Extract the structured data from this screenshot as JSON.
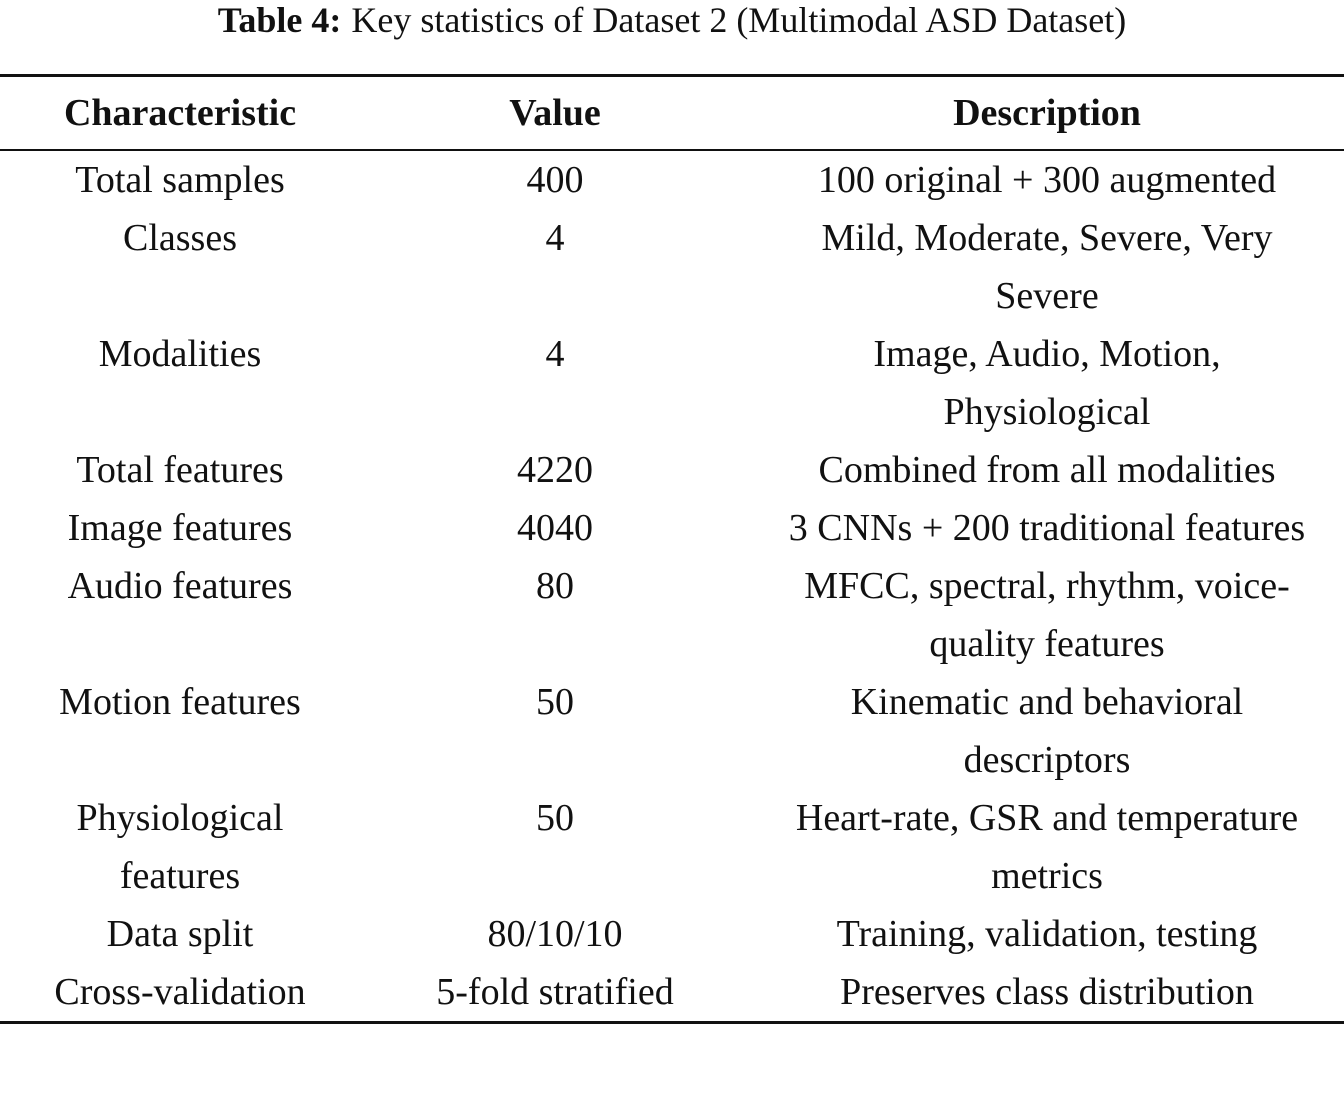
{
  "caption": {
    "label": "Table 4:",
    "text": "Key statistics of Dataset 2 (Multimodal ASD Dataset)"
  },
  "table": {
    "header": [
      "Characteristic",
      "Value",
      "Description"
    ],
    "rows": [
      [
        "Total samples",
        "400",
        "100 original + 300 augmented"
      ],
      [
        "Classes",
        "4",
        "Mild, Moderate, Severe, Very Severe"
      ],
      [
        "Modalities",
        "4",
        "Image, Audio, Motion, Physiological"
      ],
      [
        "Total features",
        "4220",
        "Combined from all modalities"
      ],
      [
        "Image features",
        "4040",
        "3 CNNs + 200 traditional features"
      ],
      [
        "Audio features",
        "80",
        "MFCC, spectral, rhythm, voice-quality features"
      ],
      [
        "Motion features",
        "50",
        "Kinematic and behavioral descriptors"
      ],
      [
        "Physiological features",
        "50",
        "Heart-rate, GSR and temperature metrics"
      ],
      [
        "Data split",
        "80/10/10",
        "Training, validation, testing"
      ],
      [
        "Cross-validation",
        "5-fold stratified",
        "Preserves class distribution"
      ]
    ]
  }
}
